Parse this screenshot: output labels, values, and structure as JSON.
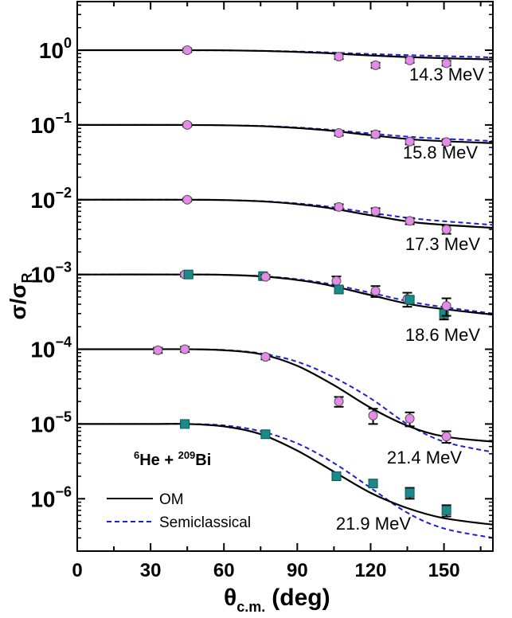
{
  "chart_data": {
    "type": "scatter",
    "xlabel_main": "θ",
    "xlabel_sub": "c.m.",
    "xlabel_unit": "(deg)",
    "ylabel_main": "σ/σ",
    "ylabel_sub": "R",
    "xlim": [
      0,
      170
    ],
    "ylim_log10": [
      -6.7,
      0.65
    ],
    "x_ticks": [
      0,
      30,
      60,
      90,
      120,
      150
    ],
    "y_ticks": [
      {
        "exp": 0,
        "base": "10",
        "exp_label": "0"
      },
      {
        "exp": -1,
        "base": "10",
        "exp_label": "−1"
      },
      {
        "exp": -2,
        "base": "10",
        "exp_label": "−2"
      },
      {
        "exp": -3,
        "base": "10",
        "exp_label": "−3"
      },
      {
        "exp": -4,
        "base": "10",
        "exp_label": "−4"
      },
      {
        "exp": -5,
        "base": "10",
        "exp_label": "−5"
      },
      {
        "exp": -6,
        "base": "10",
        "exp_label": "−6"
      }
    ],
    "reaction": {
      "sup1": "6",
      "base1": "He + ",
      "sup2": "209",
      "base2": "Bi"
    },
    "legend": [
      {
        "label": "OM",
        "color": "#000000",
        "dash": "solid"
      },
      {
        "label": "Semiclassical",
        "color": "#1f1fd6",
        "dash": "dashed"
      }
    ],
    "colors": {
      "pink": "#e58ae8",
      "teal": "#1b8a8a",
      "om": "#000000",
      "semi": "#1f1fd6"
    },
    "series": [
      {
        "energy_label": "14.3 MeV",
        "scale_exp": 0,
        "om": [
          [
            0,
            1.0
          ],
          [
            40,
            1.0
          ],
          [
            60,
            0.995
          ],
          [
            80,
            0.97
          ],
          [
            100,
            0.92
          ],
          [
            120,
            0.85
          ],
          [
            140,
            0.8
          ],
          [
            170,
            0.75
          ]
        ],
        "semi": [
          [
            0,
            1.0
          ],
          [
            40,
            1.0
          ],
          [
            60,
            0.995
          ],
          [
            80,
            0.975
          ],
          [
            100,
            0.94
          ],
          [
            120,
            0.89
          ],
          [
            140,
            0.85
          ],
          [
            170,
            0.8
          ]
        ],
        "points": [
          {
            "x": 45,
            "y": 1.0,
            "err": 0.06,
            "c": "pink"
          },
          {
            "x": 107,
            "y": 0.82,
            "err": 0.06,
            "c": "pink"
          },
          {
            "x": 122,
            "y": 0.63,
            "err": 0.05,
            "c": "pink"
          },
          {
            "x": 136,
            "y": 0.73,
            "err": 0.05,
            "c": "pink"
          },
          {
            "x": 151,
            "y": 0.67,
            "err": 0.05,
            "c": "pink"
          }
        ]
      },
      {
        "energy_label": "15.8 MeV",
        "scale_exp": -1,
        "om": [
          [
            0,
            1.0
          ],
          [
            40,
            1.0
          ],
          [
            60,
            0.99
          ],
          [
            80,
            0.95
          ],
          [
            100,
            0.86
          ],
          [
            120,
            0.73
          ],
          [
            140,
            0.63
          ],
          [
            170,
            0.57
          ]
        ],
        "semi": [
          [
            0,
            1.0
          ],
          [
            40,
            1.0
          ],
          [
            60,
            0.99
          ],
          [
            80,
            0.96
          ],
          [
            100,
            0.88
          ],
          [
            120,
            0.77
          ],
          [
            140,
            0.68
          ],
          [
            170,
            0.61
          ]
        ],
        "points": [
          {
            "x": 45,
            "y": 1.0,
            "err": 0.05,
            "c": "pink"
          },
          {
            "x": 107,
            "y": 0.78,
            "err": 0.06,
            "c": "pink"
          },
          {
            "x": 122,
            "y": 0.75,
            "err": 0.07,
            "c": "pink"
          },
          {
            "x": 136,
            "y": 0.6,
            "err": 0.05,
            "c": "pink"
          },
          {
            "x": 151,
            "y": 0.59,
            "err": 0.05,
            "c": "pink"
          }
        ]
      },
      {
        "energy_label": "17.3 MeV",
        "scale_exp": -2,
        "om": [
          [
            0,
            1.0
          ],
          [
            40,
            1.0
          ],
          [
            60,
            0.99
          ],
          [
            80,
            0.93
          ],
          [
            100,
            0.8
          ],
          [
            120,
            0.62
          ],
          [
            140,
            0.49
          ],
          [
            170,
            0.42
          ]
        ],
        "semi": [
          [
            0,
            1.0
          ],
          [
            40,
            1.0
          ],
          [
            60,
            0.99
          ],
          [
            80,
            0.94
          ],
          [
            100,
            0.83
          ],
          [
            120,
            0.67
          ],
          [
            140,
            0.55
          ],
          [
            170,
            0.46
          ]
        ],
        "points": [
          {
            "x": 45,
            "y": 1.0,
            "err": 0.05,
            "c": "pink"
          },
          {
            "x": 107,
            "y": 0.8,
            "err": 0.07,
            "c": "pink"
          },
          {
            "x": 122,
            "y": 0.7,
            "err": 0.07,
            "c": "pink"
          },
          {
            "x": 136,
            "y": 0.52,
            "err": 0.05,
            "c": "pink"
          },
          {
            "x": 151,
            "y": 0.4,
            "err": 0.05,
            "c": "pink"
          }
        ]
      },
      {
        "energy_label": "18.6 MeV",
        "scale_exp": -3,
        "om": [
          [
            0,
            1.0
          ],
          [
            40,
            1.0
          ],
          [
            60,
            0.99
          ],
          [
            80,
            0.92
          ],
          [
            100,
            0.75
          ],
          [
            120,
            0.53
          ],
          [
            140,
            0.38
          ],
          [
            170,
            0.29
          ]
        ],
        "semi": [
          [
            0,
            1.0
          ],
          [
            40,
            1.0
          ],
          [
            60,
            0.99
          ],
          [
            80,
            0.93
          ],
          [
            100,
            0.78
          ],
          [
            120,
            0.57
          ],
          [
            140,
            0.41
          ],
          [
            170,
            0.3
          ]
        ],
        "points": [
          {
            "x": 44,
            "y": 1.0,
            "err": 0.06,
            "c": "pink"
          },
          {
            "x": 45.5,
            "y": 1.0,
            "err": 0.06,
            "c": "teal"
          },
          {
            "x": 76,
            "y": 0.95,
            "err": 0.06,
            "c": "teal"
          },
          {
            "x": 77,
            "y": 0.93,
            "err": 0.06,
            "c": "pink"
          },
          {
            "x": 106,
            "y": 0.82,
            "err": 0.12,
            "c": "pink"
          },
          {
            "x": 107,
            "y": 0.63,
            "err": 0.06,
            "c": "teal"
          },
          {
            "x": 122,
            "y": 0.6,
            "err": 0.1,
            "c": "pink"
          },
          {
            "x": 135,
            "y": 0.47,
            "err": 0.1,
            "c": "pink"
          },
          {
            "x": 136,
            "y": 0.46,
            "err": 0.05,
            "c": "teal"
          },
          {
            "x": 150,
            "y": 0.3,
            "err": 0.05,
            "c": "teal"
          },
          {
            "x": 151,
            "y": 0.38,
            "err": 0.1,
            "c": "pink"
          }
        ]
      },
      {
        "energy_label": "21.4 MeV",
        "scale_exp": -4,
        "om": [
          [
            0,
            1.0
          ],
          [
            30,
            1.0
          ],
          [
            45,
            1.0
          ],
          [
            60,
            0.97
          ],
          [
            75,
            0.86
          ],
          [
            90,
            0.6
          ],
          [
            105,
            0.33
          ],
          [
            120,
            0.165
          ],
          [
            135,
            0.095
          ],
          [
            150,
            0.068
          ],
          [
            170,
            0.058
          ]
        ],
        "semi": [
          [
            0,
            1.0
          ],
          [
            30,
            1.0
          ],
          [
            45,
            1.0
          ],
          [
            60,
            0.98
          ],
          [
            75,
            0.88
          ],
          [
            90,
            0.68
          ],
          [
            105,
            0.42
          ],
          [
            120,
            0.22
          ],
          [
            135,
            0.1
          ],
          [
            150,
            0.058
          ],
          [
            170,
            0.042
          ]
        ],
        "points": [
          {
            "x": 33,
            "y": 0.97,
            "err": 0.08,
            "c": "pink"
          },
          {
            "x": 44,
            "y": 1.0,
            "err": 0.08,
            "c": "pink"
          },
          {
            "x": 77,
            "y": 0.79,
            "err": 0.06,
            "c": "pink"
          },
          {
            "x": 107,
            "y": 0.2,
            "err": 0.03,
            "c": "pink"
          },
          {
            "x": 121,
            "y": 0.13,
            "err": 0.03,
            "c": "pink"
          },
          {
            "x": 136,
            "y": 0.118,
            "err": 0.025,
            "c": "pink"
          },
          {
            "x": 151,
            "y": 0.068,
            "err": 0.012,
            "c": "pink"
          }
        ]
      },
      {
        "energy_label": "21.9 MeV",
        "scale_exp": -5,
        "om": [
          [
            0,
            1.0
          ],
          [
            30,
            1.0
          ],
          [
            45,
            1.0
          ],
          [
            60,
            0.93
          ],
          [
            75,
            0.73
          ],
          [
            90,
            0.44
          ],
          [
            105,
            0.23
          ],
          [
            120,
            0.12
          ],
          [
            135,
            0.075
          ],
          [
            150,
            0.055
          ],
          [
            170,
            0.045
          ]
        ],
        "semi": [
          [
            0,
            1.0
          ],
          [
            30,
            1.0
          ],
          [
            45,
            1.0
          ],
          [
            60,
            0.96
          ],
          [
            75,
            0.8
          ],
          [
            90,
            0.55
          ],
          [
            105,
            0.3
          ],
          [
            120,
            0.14
          ],
          [
            135,
            0.065
          ],
          [
            150,
            0.04
          ],
          [
            170,
            0.03
          ]
        ],
        "points": [
          {
            "x": 44,
            "y": 1.0,
            "err": 0.05,
            "c": "teal"
          },
          {
            "x": 77,
            "y": 0.73,
            "err": 0.05,
            "c": "teal"
          },
          {
            "x": 106,
            "y": 0.2,
            "err": 0.015,
            "c": "teal"
          },
          {
            "x": 121,
            "y": 0.16,
            "err": 0.015,
            "c": "teal"
          },
          {
            "x": 136,
            "y": 0.12,
            "err": 0.02,
            "c": "teal"
          },
          {
            "x": 151,
            "y": 0.07,
            "err": 0.012,
            "c": "teal"
          }
        ]
      }
    ]
  }
}
